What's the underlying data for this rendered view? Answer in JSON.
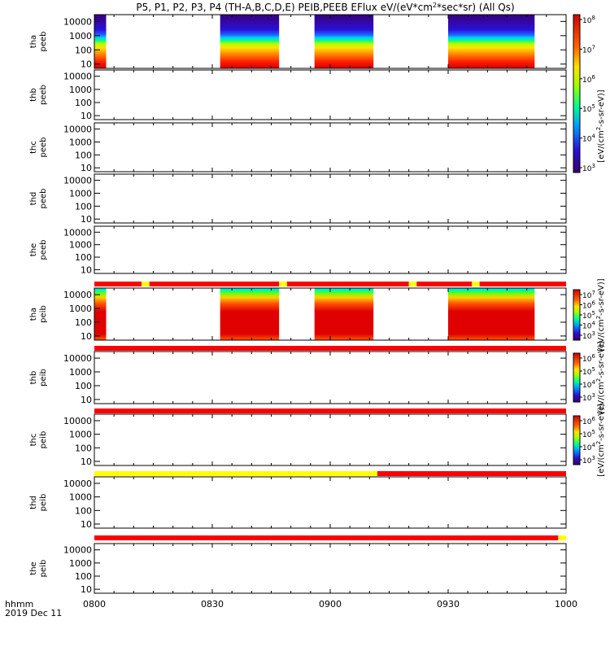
{
  "chart_data": {
    "type": "heatmap",
    "title": "P5, P1, P2, P3, P4 (TH-A,B,C,D,E) PEIB,PEEB EFlux eV/(eV*cm^2*sec*sr) (All Qs)",
    "title_parts": {
      "main": "P5, P1, P2, P3, P4 (TH-A,B,C,D,E) PEIB,PEEB EFlux eV/(eV*cm",
      "sup": "2",
      "tail": "*sec*sr)  (All Qs)"
    },
    "x_axis": {
      "ticks": [
        "0800",
        "0830",
        "0900",
        "0930",
        "1000"
      ],
      "tick_minutes": [
        0,
        30,
        60,
        90,
        120
      ],
      "range_minutes": [
        0,
        120
      ],
      "label_left": "hhmm",
      "date": "2019 Dec 11"
    },
    "y_axis": {
      "scale": "log",
      "ylim": [
        5,
        30000
      ],
      "ticks": [
        "10",
        "100",
        "1000",
        "10000"
      ],
      "tick_values": [
        10,
        100,
        1000,
        10000
      ]
    },
    "panels": [
      {
        "probe": "tha",
        "product": "peeb",
        "has_data": true,
        "intervals": [
          [
            -2,
            3
          ],
          [
            32,
            47
          ],
          [
            56,
            71
          ],
          [
            90,
            112
          ]
        ],
        "stack": [
          [
            "#d40000",
            0.0
          ],
          [
            "#ff1c00",
            0.12
          ],
          [
            "#ff8a00",
            0.27
          ],
          [
            "#ffe100",
            0.38
          ],
          [
            "#b4ff00",
            0.46
          ],
          [
            "#00ff80",
            0.52
          ],
          [
            "#00d0ff",
            0.57
          ],
          [
            "#1f5fff",
            0.63
          ],
          [
            "#2a10d8",
            0.72
          ],
          [
            "#3a007a",
            1.0
          ]
        ]
      },
      {
        "probe": "thb",
        "product": "peeb",
        "has_data": false,
        "intervals": [],
        "stack": []
      },
      {
        "probe": "thc",
        "product": "peeb",
        "has_data": false,
        "intervals": [],
        "stack": []
      },
      {
        "probe": "thd",
        "product": "peeb",
        "has_data": false,
        "intervals": [],
        "stack": []
      },
      {
        "probe": "the",
        "product": "peeb",
        "has_data": false,
        "intervals": [],
        "stack": []
      },
      {
        "probe": "tha",
        "product": "peib",
        "has_data": true,
        "intervals": [
          [
            -2,
            3
          ],
          [
            32,
            47
          ],
          [
            56,
            71
          ],
          [
            90,
            112
          ]
        ],
        "stack": [
          [
            "#ff5a00",
            0.0
          ],
          [
            "#e00000",
            0.12
          ],
          [
            "#e00000",
            0.55
          ],
          [
            "#ff5000",
            0.7
          ],
          [
            "#ffd000",
            0.82
          ],
          [
            "#6cff00",
            0.9
          ],
          [
            "#00ffa0",
            0.95
          ],
          [
            "#00d0ff",
            1.0
          ]
        ]
      },
      {
        "probe": "thb",
        "product": "peib",
        "has_data": false,
        "intervals": [],
        "stack": []
      },
      {
        "probe": "thc",
        "product": "peib",
        "has_data": false,
        "intervals": [],
        "stack": []
      },
      {
        "probe": "thd",
        "product": "peib",
        "has_data": false,
        "intervals": [],
        "stack": []
      },
      {
        "probe": "the",
        "product": "peib",
        "has_data": false,
        "intervals": [],
        "stack": []
      }
    ],
    "quality_bars": [
      {
        "after_panel": 5,
        "segments": [
          [
            0,
            12,
            "red"
          ],
          [
            12,
            14,
            "yellow"
          ],
          [
            14,
            47,
            "red"
          ],
          [
            47,
            49,
            "yellow"
          ],
          [
            49,
            80,
            "red"
          ],
          [
            80,
            82,
            "yellow"
          ],
          [
            82,
            96,
            "red"
          ],
          [
            96,
            98,
            "yellow"
          ],
          [
            98,
            120,
            "red"
          ]
        ]
      },
      {
        "after_panel": 6,
        "segments": [
          [
            0,
            120,
            "red"
          ]
        ]
      },
      {
        "after_panel": 7,
        "segments": [
          [
            0,
            120,
            "red"
          ]
        ]
      },
      {
        "after_panel": 8,
        "segments": [
          [
            0,
            72,
            "yellow"
          ],
          [
            72,
            120,
            "red"
          ]
        ]
      },
      {
        "after_panel": 9,
        "segments": [
          [
            0,
            118,
            "red"
          ],
          [
            118,
            120,
            "yellow"
          ]
        ]
      }
    ],
    "colorbars": [
      {
        "for_panels": [
          0,
          1,
          2,
          3,
          4
        ],
        "kind": "peeb",
        "labels": [
          "10^3",
          "10^4",
          "10^5",
          "10^6",
          "10^7",
          "10^8"
        ],
        "title": "[eV/(cm^2-s-sr-eV)]"
      },
      {
        "for_panels": [
          5
        ],
        "kind": "peib",
        "labels": [
          "10^3",
          "10^4",
          "10^5",
          "10^6",
          "10^7"
        ],
        "title": "[eV/(cm^2-s-sr-eV)]"
      },
      {
        "for_panels": [
          6
        ],
        "kind": "peib",
        "labels": [
          "10^3",
          "10^4",
          "10^5",
          "10^6"
        ],
        "title": "[eV/(cm^2-s-sr-eV)]"
      },
      {
        "for_panels": [
          7
        ],
        "kind": "peib",
        "labels": [
          "10^3",
          "10^4",
          "10^5",
          "10^6"
        ],
        "title": "[eV/(cm^2-s-sr-eV)]"
      }
    ],
    "colors": {
      "bar_red": "#ff0000",
      "bar_yellow": "#ffff00",
      "axis": "#000000"
    }
  }
}
